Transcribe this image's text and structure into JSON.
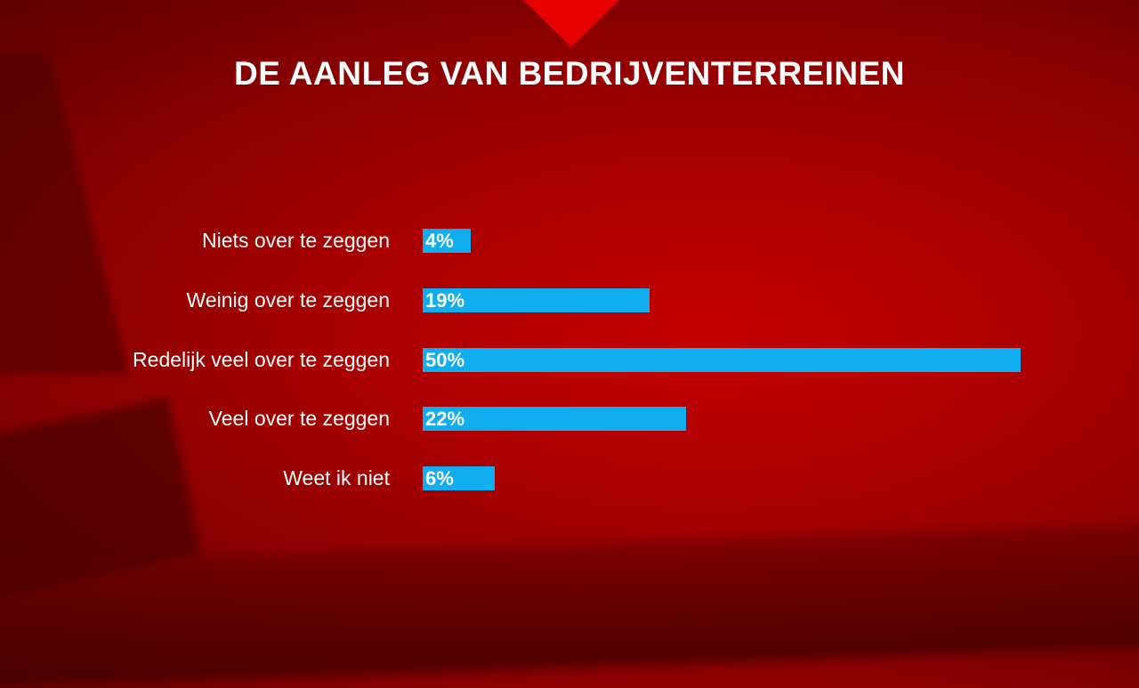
{
  "chart_data": {
    "type": "bar",
    "orientation": "horizontal",
    "title": "DE AANLEG VAN BEDRIJVENTERREINEN",
    "categories": [
      "Niets over te zeggen",
      "Weinig over te zeggen",
      "Redelijk veel over te zeggen",
      "Veel over te zeggen",
      "Weet ik niet"
    ],
    "values": [
      4,
      19,
      50,
      22,
      6
    ],
    "value_labels": [
      "4%",
      "19%",
      "50%",
      "22%",
      "6%"
    ],
    "xlabel": "",
    "ylabel": "",
    "xlim": [
      0,
      50
    ],
    "grid": false,
    "colors": {
      "bar": "#10aeee",
      "text": "#ffffff",
      "marker": "#e60000"
    }
  }
}
